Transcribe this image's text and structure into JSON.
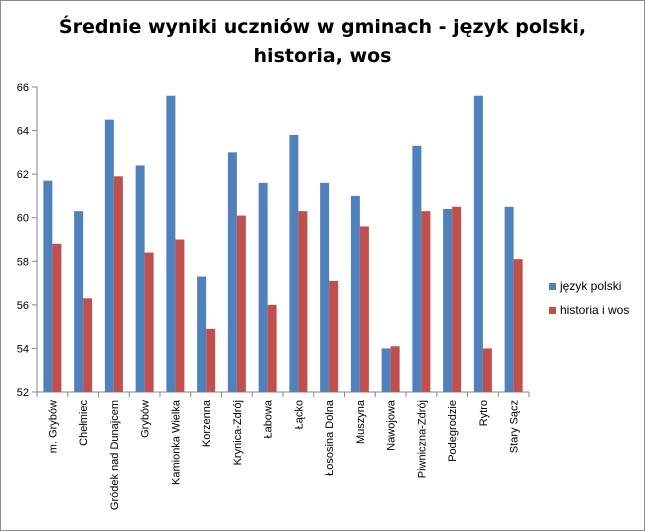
{
  "chart_data": {
    "type": "bar",
    "title": "Średnie wyniki uczniów w gminach - język polski,\nhistoria, wos",
    "xlabel": "",
    "ylabel": "",
    "ylim": [
      52,
      66
    ],
    "ytick_step": 2,
    "grid": false,
    "legend_position": "right",
    "categories": [
      "m. Grybów",
      "Chełmiec",
      "Gródek nad Dunajcem",
      "Grybów",
      "Kamionka Wielka",
      "Korzenna",
      "Krynica-Zdrój",
      "Łabowa",
      "Łącko",
      "Łososina Dolna",
      "Muszyna",
      "Nawojowa",
      "Piwniczna-Zdrój",
      "Podegrodzie",
      "Rytro",
      "Stary Sącz"
    ],
    "series": [
      {
        "name": "język polski",
        "color": "#4f81bd",
        "values": [
          61.7,
          60.3,
          64.5,
          62.4,
          65.6,
          57.3,
          63.0,
          61.6,
          63.8,
          61.6,
          61.0,
          54.0,
          63.3,
          60.4,
          65.6,
          60.5
        ]
      },
      {
        "name": "historia i wos",
        "color": "#c0504d",
        "values": [
          58.8,
          56.3,
          61.9,
          58.4,
          59.0,
          54.9,
          60.1,
          56.0,
          60.3,
          57.1,
          59.6,
          54.1,
          60.3,
          60.5,
          54.0,
          58.1
        ]
      }
    ]
  }
}
